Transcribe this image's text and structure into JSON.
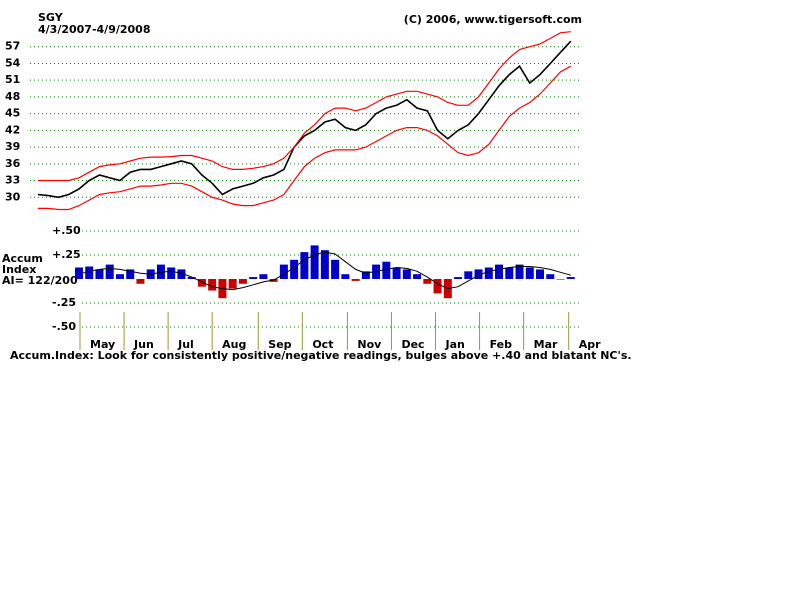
{
  "chart_data": [
    {
      "type": "line",
      "title": "SGY",
      "subtitle": "4/3/2007-4/9/2008",
      "source": "(C) 2006, www.tigersoft.com",
      "x": [
        0,
        1,
        2,
        3,
        4,
        5,
        6,
        7,
        8,
        9,
        10,
        11,
        12,
        13,
        14,
        15,
        16,
        17,
        18,
        19,
        20,
        21,
        22,
        23,
        24,
        25,
        26,
        27,
        28,
        29,
        30,
        31,
        32,
        33,
        34,
        35,
        36,
        37,
        38,
        39,
        40,
        41,
        42,
        43,
        44,
        45,
        46,
        47,
        48,
        49,
        50,
        51,
        52
      ],
      "xlim": [
        0,
        53
      ],
      "ylim": [
        27,
        60
      ],
      "yticks": [
        30,
        33,
        36,
        39,
        42,
        45,
        48,
        51,
        54,
        57
      ],
      "grid": true,
      "grid_color": "#008000",
      "series": [
        {
          "color": "#000000",
          "values": [
            30.5,
            30.3,
            30,
            30.5,
            31.5,
            33,
            34,
            33.5,
            33,
            34.5,
            35,
            35,
            35.5,
            36,
            36.5,
            36,
            34,
            32.5,
            30.5,
            31.5,
            32,
            32.5,
            33.5,
            34,
            35,
            39,
            41,
            42,
            43.5,
            44,
            42.5,
            42,
            43,
            45,
            46,
            46.5,
            47.5,
            46,
            45.5,
            42,
            40.5,
            42,
            43,
            45,
            47.5,
            50,
            52,
            53.5,
            50.5,
            52,
            54,
            56,
            58
          ]
        },
        {
          "color": "#ff0000",
          "values": [
            33,
            33,
            33,
            33,
            33.5,
            34.5,
            35.5,
            35.8,
            36,
            36.5,
            37,
            37.2,
            37.2,
            37.3,
            37.5,
            37.5,
            37,
            36.5,
            35.5,
            35,
            35,
            35.2,
            35.5,
            36,
            37,
            39,
            41.5,
            43,
            45,
            46,
            46,
            45.5,
            46,
            47,
            48,
            48.5,
            49,
            49,
            48.5,
            48,
            47,
            46.5,
            46.5,
            48,
            50.5,
            53,
            55,
            56.5,
            57,
            57.5,
            58.5,
            59.5,
            59.7
          ]
        },
        {
          "color": "#ff0000",
          "values": [
            28,
            28,
            27.8,
            27.8,
            28.5,
            29.5,
            30.5,
            30.8,
            31,
            31.5,
            32,
            32,
            32.2,
            32.5,
            32.5,
            32,
            31,
            30,
            29.5,
            28.8,
            28.5,
            28.5,
            29,
            29.5,
            30.5,
            33,
            35.5,
            37,
            38,
            38.5,
            38.5,
            38.5,
            39,
            40,
            41,
            42,
            42.5,
            42.5,
            42,
            41,
            39.5,
            38,
            37.5,
            38,
            39.5,
            42,
            44.5,
            46,
            47,
            48.5,
            50.5,
            52.5,
            53.5
          ]
        }
      ]
    },
    {
      "type": "bar",
      "ylabel_lines": [
        "Accum",
        "Index"
      ],
      "annotation": "AI= 122/200",
      "caption": "Accum.Index: Look for consistently positive/negative readings, bulges above +.40 and blatant NC's.",
      "x": [
        0,
        1,
        2,
        3,
        4,
        5,
        6,
        7,
        8,
        9,
        10,
        11,
        12,
        13,
        14,
        15,
        16,
        17,
        18,
        19,
        20,
        21,
        22,
        23,
        24,
        25,
        26,
        27,
        28,
        29,
        30,
        31,
        32,
        33,
        34,
        35,
        36,
        37,
        38,
        39,
        40,
        41,
        42,
        43,
        44,
        45,
        46,
        47,
        48,
        49,
        50,
        51,
        52
      ],
      "xlim": [
        0,
        53
      ],
      "xticks": [
        {
          "value": 4.1,
          "label": "May"
        },
        {
          "value": 8.4,
          "label": "Jun"
        },
        {
          "value": 12.7,
          "label": "Jul"
        },
        {
          "value": 17,
          "label": "Aug"
        },
        {
          "value": 21.5,
          "label": "Sep"
        },
        {
          "value": 25.8,
          "label": "Oct"
        },
        {
          "value": 30.2,
          "label": "Nov"
        },
        {
          "value": 34.5,
          "label": "Dec"
        },
        {
          "value": 38.8,
          "label": "Jan"
        },
        {
          "value": 43.1,
          "label": "Feb"
        },
        {
          "value": 47.4,
          "label": "Mar"
        },
        {
          "value": 51.8,
          "label": "Apr"
        }
      ],
      "ylim": [
        -0.5,
        0.5
      ],
      "yticks": [
        {
          "value": 0.5,
          "label": "+.50"
        },
        {
          "value": 0.25,
          "label": "+.25"
        },
        {
          "value": -0.25,
          "label": "-.25"
        },
        {
          "value": -0.5,
          "label": "-.50"
        }
      ],
      "grid": true,
      "grid_color": "#008000",
      "positive_color": "#0000cc",
      "negative_color": "#cc0000",
      "values": [
        null,
        null,
        null,
        null,
        0.12,
        0.13,
        0.1,
        0.15,
        0.05,
        0.1,
        -0.05,
        0.1,
        0.15,
        0.12,
        0.1,
        0.02,
        -0.08,
        -0.12,
        -0.2,
        -0.1,
        -0.05,
        0.02,
        0.05,
        -0.03,
        0.15,
        0.2,
        0.28,
        0.35,
        0.3,
        0.2,
        0.05,
        -0.02,
        0.08,
        0.15,
        0.18,
        0.12,
        0.1,
        0.05,
        -0.05,
        -0.15,
        -0.2,
        0.02,
        0.08,
        0.1,
        0.12,
        0.15,
        0.12,
        0.15,
        0.12,
        0.1,
        0.05,
        0.0,
        0.02
      ],
      "line_color": "#000000",
      "line_values": [
        null,
        null,
        null,
        null,
        0.05,
        0.08,
        0.1,
        0.11,
        0.1,
        0.08,
        0.06,
        0.05,
        0.07,
        0.08,
        0.06,
        0.02,
        -0.03,
        -0.08,
        -0.1,
        -0.11,
        -0.09,
        -0.06,
        -0.03,
        -0.01,
        0.05,
        0.12,
        0.2,
        0.25,
        0.28,
        0.26,
        0.18,
        0.1,
        0.06,
        0.08,
        0.1,
        0.12,
        0.11,
        0.08,
        0.02,
        -0.05,
        -0.1,
        -0.08,
        -0.02,
        0.04,
        0.08,
        0.1,
        0.12,
        0.13,
        0.13,
        0.12,
        0.1,
        0.07,
        0.04
      ]
    }
  ]
}
